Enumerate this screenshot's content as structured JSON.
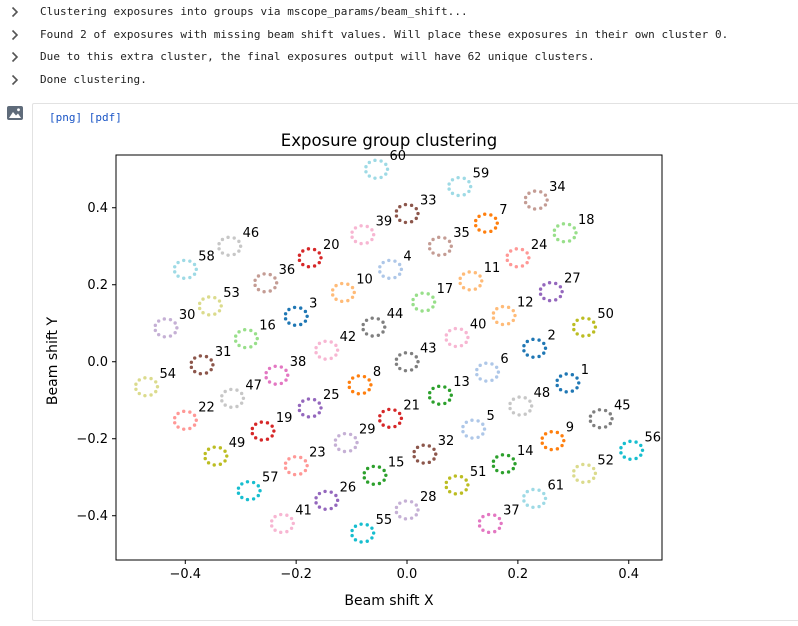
{
  "log": {
    "lines": [
      "Clustering exposures into groups via mscope_params/beam_shift...",
      "Found 2 of exposures with missing beam shift values. Will place these exposures in their own cluster 0.",
      "Due to this extra cluster, the final exposures output will have 62 unique clusters.",
      "Done clustering."
    ]
  },
  "output": {
    "png_link": "[png]",
    "pdf_link": "[pdf]",
    "image_icon": "image-icon"
  },
  "chart_data": {
    "type": "scatter",
    "title": "Exposure group clustering",
    "xlabel": "Beam shift X",
    "ylabel": "Beam shift Y",
    "xlim": [
      -0.525,
      0.46
    ],
    "ylim": [
      -0.515,
      0.537
    ],
    "xticks": [
      -0.4,
      -0.2,
      0.0,
      0.2,
      0.4
    ],
    "yticks": [
      -0.4,
      -0.2,
      0.0,
      0.2,
      0.4
    ],
    "xtick_labels": [
      "−0.4",
      "−0.2",
      "0.0",
      "0.2",
      "0.4"
    ],
    "ytick_labels": [
      "−0.4",
      "−0.2",
      "0.0",
      "0.2",
      "0.4"
    ],
    "grid": false,
    "legend": "none",
    "marker_description": "each cluster is a small ring of dots labeled with its cluster number",
    "clusters": [
      {
        "label": "1",
        "x": 0.29,
        "y": -0.055,
        "color": "#1f77b4"
      },
      {
        "label": "2",
        "x": 0.23,
        "y": 0.035,
        "color": "#1f77b4"
      },
      {
        "label": "3",
        "x": -0.2,
        "y": 0.118,
        "color": "#1f77b4"
      },
      {
        "label": "4",
        "x": -0.03,
        "y": 0.24,
        "color": "#aec7e8"
      },
      {
        "label": "5",
        "x": 0.12,
        "y": -0.175,
        "color": "#aec7e8"
      },
      {
        "label": "6",
        "x": 0.145,
        "y": -0.027,
        "color": "#aec7e8"
      },
      {
        "label": "7",
        "x": 0.143,
        "y": 0.36,
        "color": "#ff7f0e"
      },
      {
        "label": "8",
        "x": -0.085,
        "y": -0.06,
        "color": "#ff7f0e"
      },
      {
        "label": "9",
        "x": 0.263,
        "y": -0.205,
        "color": "#ff7f0e"
      },
      {
        "label": "10",
        "x": -0.115,
        "y": 0.18,
        "color": "#ffbb78"
      },
      {
        "label": "11",
        "x": 0.115,
        "y": 0.21,
        "color": "#ffbb78"
      },
      {
        "label": "12",
        "x": 0.175,
        "y": 0.12,
        "color": "#ffbb78"
      },
      {
        "label": "13",
        "x": 0.06,
        "y": -0.087,
        "color": "#2ca02c"
      },
      {
        "label": "14",
        "x": 0.175,
        "y": -0.265,
        "color": "#2ca02c"
      },
      {
        "label": "15",
        "x": -0.058,
        "y": -0.295,
        "color": "#2ca02c"
      },
      {
        "label": "16",
        "x": -0.29,
        "y": 0.06,
        "color": "#98df8a"
      },
      {
        "label": "17",
        "x": 0.03,
        "y": 0.155,
        "color": "#98df8a"
      },
      {
        "label": "18",
        "x": 0.285,
        "y": 0.335,
        "color": "#98df8a"
      },
      {
        "label": "19",
        "x": -0.26,
        "y": -0.18,
        "color": "#d62728"
      },
      {
        "label": "20",
        "x": -0.175,
        "y": 0.27,
        "color": "#d62728"
      },
      {
        "label": "21",
        "x": -0.03,
        "y": -0.147,
        "color": "#d62728"
      },
      {
        "label": "22",
        "x": -0.4,
        "y": -0.152,
        "color": "#ff9896"
      },
      {
        "label": "23",
        "x": -0.2,
        "y": -0.27,
        "color": "#ff9896"
      },
      {
        "label": "24",
        "x": 0.2,
        "y": 0.27,
        "color": "#ff9896"
      },
      {
        "label": "25",
        "x": -0.175,
        "y": -0.12,
        "color": "#9467bd"
      },
      {
        "label": "26",
        "x": -0.145,
        "y": -0.36,
        "color": "#9467bd"
      },
      {
        "label": "27",
        "x": 0.26,
        "y": 0.182,
        "color": "#9467bd"
      },
      {
        "label": "28",
        "x": 0.0,
        "y": -0.385,
        "color": "#c5b0d5"
      },
      {
        "label": "29",
        "x": -0.11,
        "y": -0.21,
        "color": "#c5b0d5"
      },
      {
        "label": "30",
        "x": -0.435,
        "y": 0.088,
        "color": "#c5b0d5"
      },
      {
        "label": "31",
        "x": -0.37,
        "y": -0.008,
        "color": "#8c564b"
      },
      {
        "label": "32",
        "x": 0.032,
        "y": -0.24,
        "color": "#8c564b"
      },
      {
        "label": "33",
        "x": 0.0,
        "y": 0.385,
        "color": "#8c564b"
      },
      {
        "label": "34",
        "x": 0.233,
        "y": 0.42,
        "color": "#c49c94"
      },
      {
        "label": "35",
        "x": 0.06,
        "y": 0.3,
        "color": "#c49c94"
      },
      {
        "label": "36",
        "x": -0.255,
        "y": 0.205,
        "color": "#c49c94"
      },
      {
        "label": "37",
        "x": 0.15,
        "y": -0.42,
        "color": "#e377c2"
      },
      {
        "label": "38",
        "x": -0.235,
        "y": -0.035,
        "color": "#e377c2"
      },
      {
        "label": "39",
        "x": -0.08,
        "y": 0.33,
        "color": "#f7b6d2"
      },
      {
        "label": "40",
        "x": 0.09,
        "y": 0.063,
        "color": "#f7b6d2"
      },
      {
        "label": "41",
        "x": -0.225,
        "y": -0.42,
        "color": "#f7b6d2"
      },
      {
        "label": "42",
        "x": -0.145,
        "y": 0.03,
        "color": "#f7b6d2"
      },
      {
        "label": "43",
        "x": 0.0,
        "y": 0.0,
        "color": "#7f7f7f"
      },
      {
        "label": "44",
        "x": -0.06,
        "y": 0.09,
        "color": "#7f7f7f"
      },
      {
        "label": "45",
        "x": 0.35,
        "y": -0.148,
        "color": "#7f7f7f"
      },
      {
        "label": "46",
        "x": -0.32,
        "y": 0.3,
        "color": "#c7c7c7"
      },
      {
        "label": "47",
        "x": -0.315,
        "y": -0.095,
        "color": "#c7c7c7"
      },
      {
        "label": "48",
        "x": 0.205,
        "y": -0.115,
        "color": "#c7c7c7"
      },
      {
        "label": "49",
        "x": -0.345,
        "y": -0.245,
        "color": "#bcbd22"
      },
      {
        "label": "50",
        "x": 0.32,
        "y": 0.09,
        "color": "#bcbd22"
      },
      {
        "label": "51",
        "x": 0.09,
        "y": -0.32,
        "color": "#bcbd22"
      },
      {
        "label": "52",
        "x": 0.32,
        "y": -0.29,
        "color": "#dbdb8d"
      },
      {
        "label": "53",
        "x": -0.355,
        "y": 0.145,
        "color": "#dbdb8d"
      },
      {
        "label": "54",
        "x": -0.47,
        "y": -0.065,
        "color": "#dbdb8d"
      },
      {
        "label": "55",
        "x": -0.08,
        "y": -0.445,
        "color": "#17becf"
      },
      {
        "label": "56",
        "x": 0.405,
        "y": -0.23,
        "color": "#17becf"
      },
      {
        "label": "57",
        "x": -0.285,
        "y": -0.335,
        "color": "#17becf"
      },
      {
        "label": "58",
        "x": -0.4,
        "y": 0.24,
        "color": "#9edae5"
      },
      {
        "label": "59",
        "x": 0.095,
        "y": 0.455,
        "color": "#9edae5"
      },
      {
        "label": "60",
        "x": -0.055,
        "y": 0.5,
        "color": "#9edae5"
      },
      {
        "label": "61",
        "x": 0.23,
        "y": -0.355,
        "color": "#9edae5"
      }
    ]
  }
}
